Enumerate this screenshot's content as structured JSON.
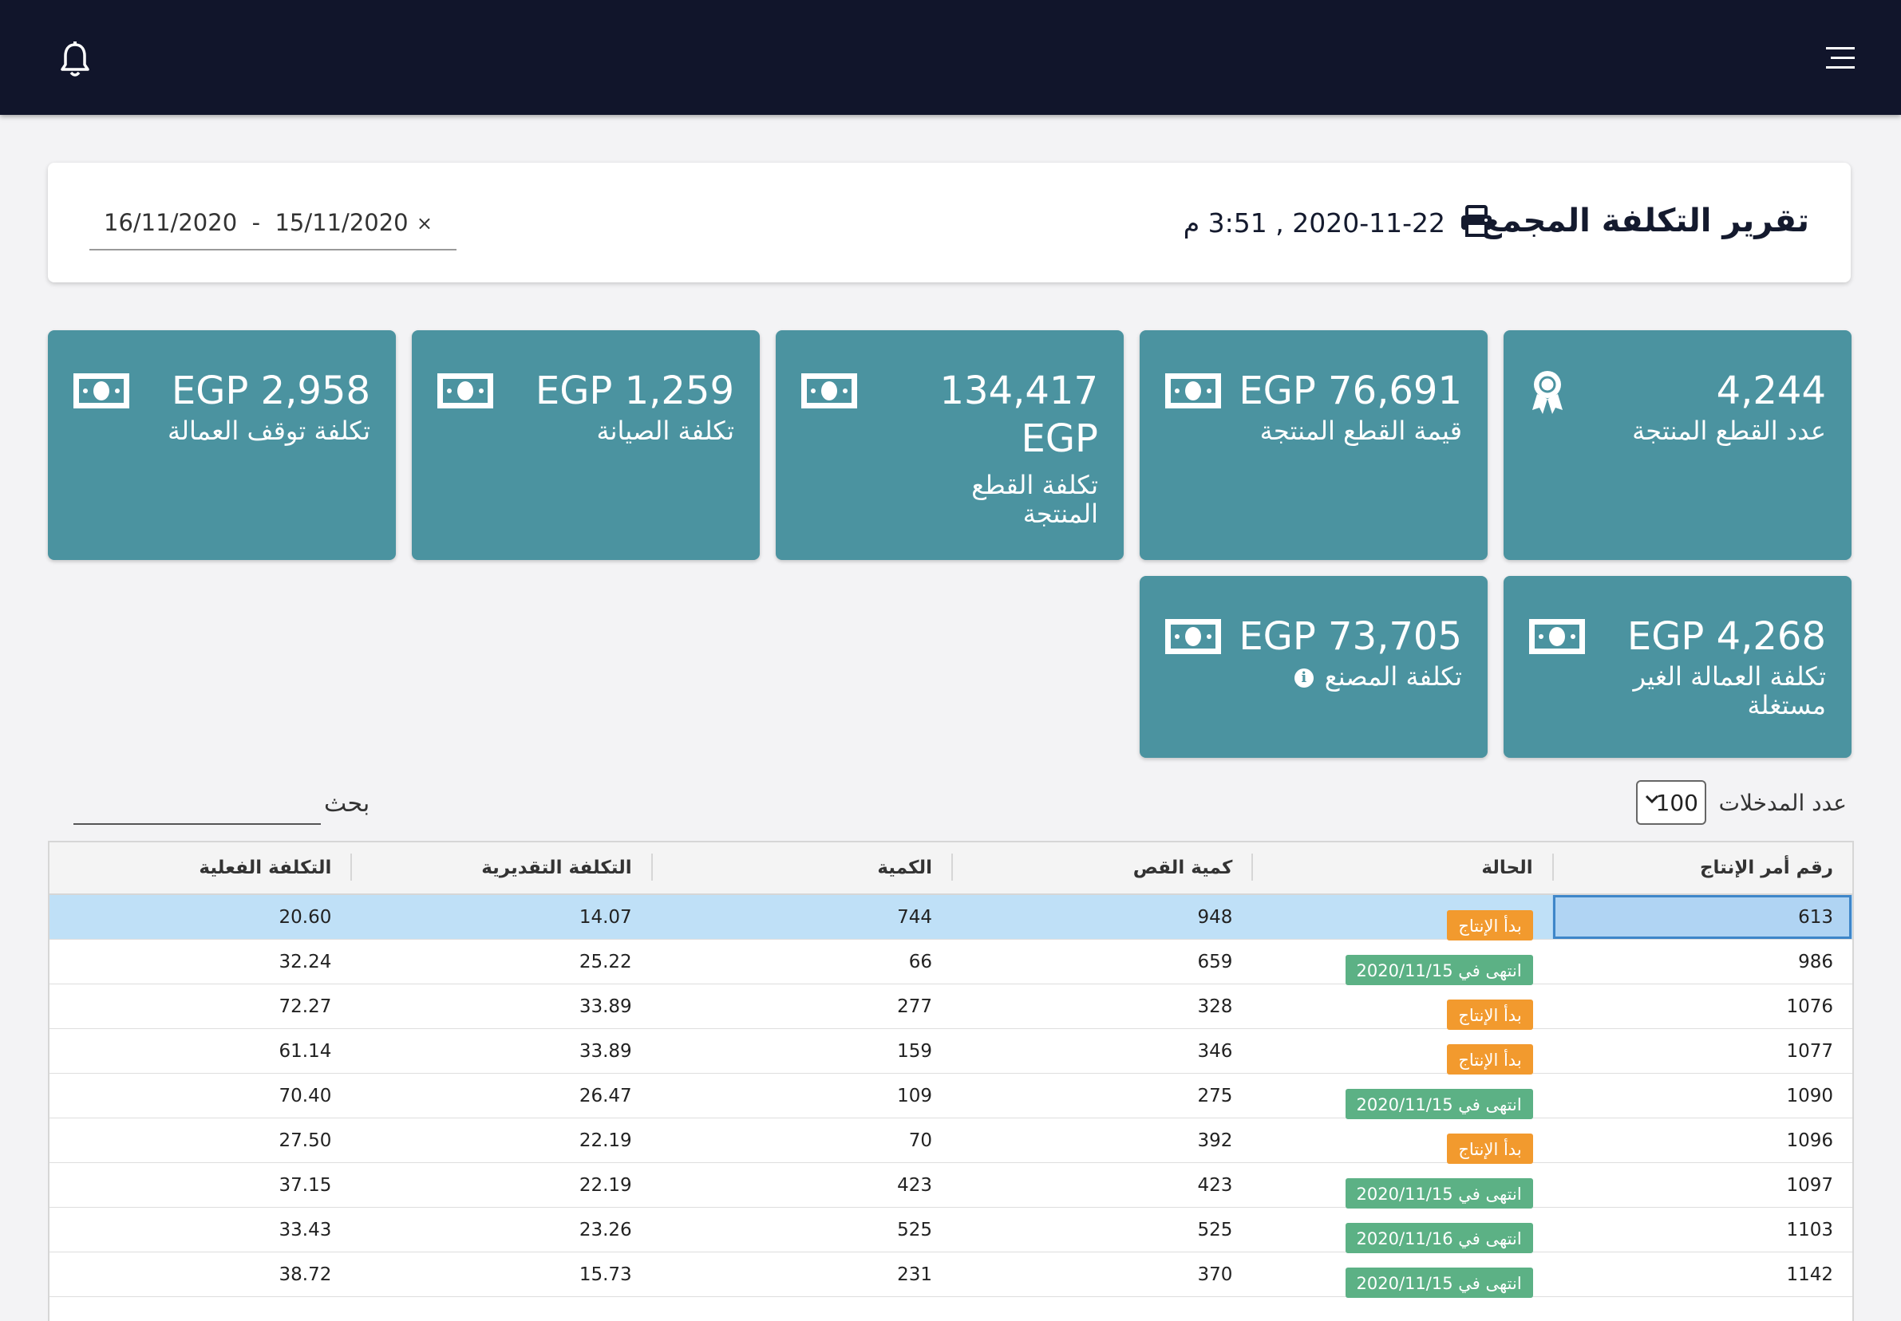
{
  "report": {
    "title": "تقرير التكلفة المجمع",
    "datetime": "2020-11-22 , 3:51 م",
    "date_range": "16/11/2020  -  15/11/2020",
    "clear_symbol": "×"
  },
  "cards": [
    {
      "value": "4,244",
      "label": "عدد القطع المنتجة",
      "icon": "award-icon"
    },
    {
      "value": "EGP 76,691",
      "label": "قيمة القطع المنتجة",
      "icon": "money-icon"
    },
    {
      "value": "134,417\nEGP",
      "label": "تكلفة القطع المنتجة",
      "icon": "money-icon"
    },
    {
      "value": "EGP 1,259",
      "label": "تكلفة الصيانة",
      "icon": "money-icon"
    },
    {
      "value": "EGP 2,958",
      "label": "تكلفة توقف العمالة",
      "icon": "money-icon"
    },
    {
      "value": "EGP 4,268",
      "label": "تكلفة العمالة الغير مستغلة",
      "icon": "money-icon"
    },
    {
      "value": "EGP 73,705",
      "label": "تكلفة المصنع",
      "icon": "money-icon",
      "info": "i"
    }
  ],
  "table_controls": {
    "entries_label": "عدد المدخلات",
    "entries_value": "100",
    "search_label": "بحث"
  },
  "table": {
    "headers": [
      "رقم أمر الإنتاج",
      "الحالة",
      "كمية القص",
      "الكمية",
      "التكلفة التقديرية",
      "التكلفة الفعلية"
    ],
    "rows": [
      {
        "order": "613",
        "status": "بدأ الإنتاج",
        "status_type": "orange",
        "cut_qty": "948",
        "qty": "744",
        "est": "14.07",
        "actual": "20.60"
      },
      {
        "order": "986",
        "status": "انتهى في 2020/11/15",
        "status_type": "green",
        "cut_qty": "659",
        "qty": "66",
        "est": "25.22",
        "actual": "32.24"
      },
      {
        "order": "1076",
        "status": "بدأ الإنتاج",
        "status_type": "orange",
        "cut_qty": "328",
        "qty": "277",
        "est": "33.89",
        "actual": "72.27"
      },
      {
        "order": "1077",
        "status": "بدأ الإنتاج",
        "status_type": "orange",
        "cut_qty": "346",
        "qty": "159",
        "est": "33.89",
        "actual": "61.14"
      },
      {
        "order": "1090",
        "status": "انتهى في 2020/11/15",
        "status_type": "green",
        "cut_qty": "275",
        "qty": "109",
        "est": "26.47",
        "actual": "70.40"
      },
      {
        "order": "1096",
        "status": "بدأ الإنتاج",
        "status_type": "orange",
        "cut_qty": "392",
        "qty": "70",
        "est": "22.19",
        "actual": "27.50"
      },
      {
        "order": "1097",
        "status": "انتهى في 2020/11/15",
        "status_type": "green",
        "cut_qty": "423",
        "qty": "423",
        "est": "22.19",
        "actual": "37.15"
      },
      {
        "order": "1103",
        "status": "انتهى في 2020/11/16",
        "status_type": "green",
        "cut_qty": "525",
        "qty": "525",
        "est": "23.26",
        "actual": "33.43"
      },
      {
        "order": "1142",
        "status": "انتهى في 2020/11/15",
        "status_type": "green",
        "cut_qty": "370",
        "qty": "231",
        "est": "15.73",
        "actual": "38.72"
      },
      {
        "order": "",
        "status": "",
        "status_type": "green",
        "cut_qty": "",
        "qty": "",
        "est": "",
        "actual": ""
      }
    ]
  },
  "colors": {
    "topbar": "#11152b",
    "card": "#4b93a0",
    "badge_started": "#f29a2e",
    "badge_finished": "#5cb185",
    "row_selected": "#bfe0f7"
  }
}
